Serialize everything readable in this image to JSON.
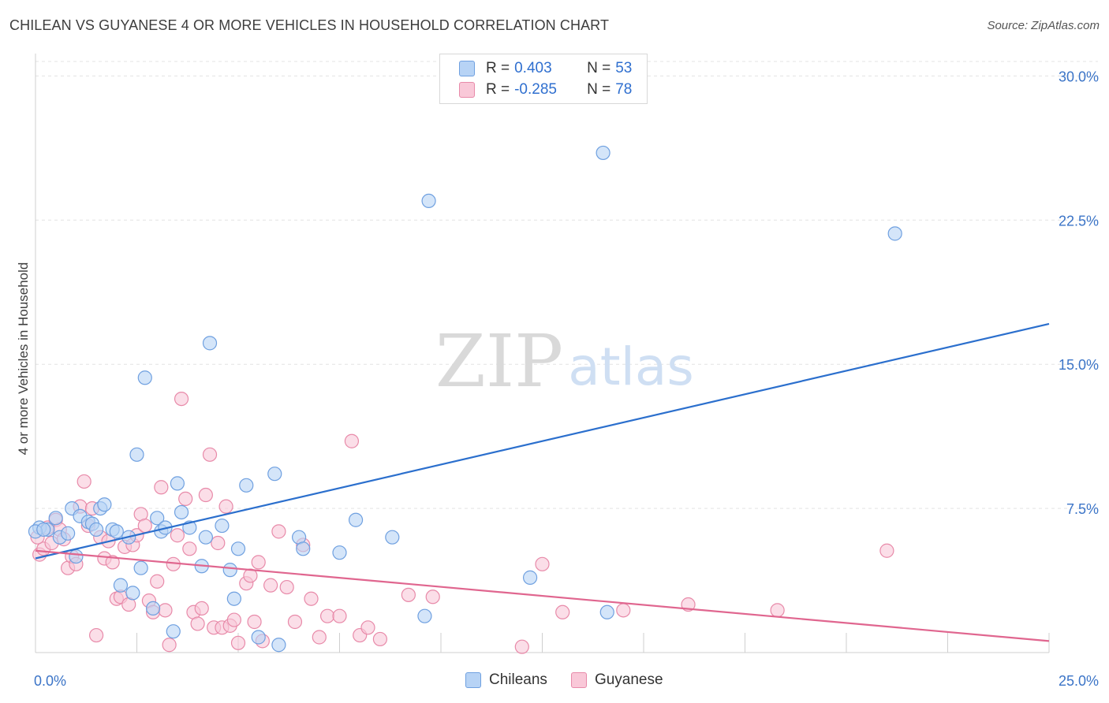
{
  "title": "CHILEAN VS GUYANESE 4 OR MORE VEHICLES IN HOUSEHOLD CORRELATION CHART",
  "source": "Source: ZipAtlas.com",
  "watermark": {
    "zip": "ZIP",
    "atlas": "atlas"
  },
  "legend_top": [
    {
      "r_label": "R =",
      "r_value": "0.403",
      "n_label": "N =",
      "n_value": "53"
    },
    {
      "r_label": "R =",
      "r_value": "-0.285",
      "n_label": "N =",
      "n_value": "78"
    }
  ],
  "colors": {
    "blue_fill": "#b7d3f5",
    "blue_stroke": "#6fa0e0",
    "blue_line": "#2b6fcd",
    "pink_fill": "#f9c8d8",
    "pink_stroke": "#e88aa9",
    "pink_line": "#e0668f",
    "tick_label": "#3b74c7",
    "grid": "#e3e3e3"
  },
  "chart_data": {
    "type": "scatter",
    "ylabel": "4 or more Vehicles in Household",
    "xlim": [
      0,
      25
    ],
    "ylim": [
      0,
      31
    ],
    "x_tick_labels": [
      "0.0%",
      "25.0%"
    ],
    "y_ticks": [
      7.5,
      15,
      22.5,
      30
    ],
    "y_tick_labels": [
      "7.5%",
      "15.0%",
      "22.5%",
      "30.0%"
    ],
    "grid": "horizontal dashed",
    "legend_placement": "bottom-center",
    "series": [
      {
        "name": "Chileans",
        "trend": [
          [
            0,
            4.9
          ],
          [
            25,
            17.1
          ]
        ],
        "points": [
          [
            0.1,
            6.5
          ],
          [
            0.3,
            6.4
          ],
          [
            0.5,
            7.0
          ],
          [
            0.6,
            6.0
          ],
          [
            0.8,
            6.2
          ],
          [
            0.9,
            7.5
          ],
          [
            1.0,
            5.0
          ],
          [
            1.1,
            7.1
          ],
          [
            1.3,
            6.8
          ],
          [
            1.4,
            6.7
          ],
          [
            1.5,
            6.4
          ],
          [
            1.6,
            7.5
          ],
          [
            1.7,
            7.7
          ],
          [
            1.9,
            6.4
          ],
          [
            2.0,
            6.3
          ],
          [
            2.1,
            3.5
          ],
          [
            2.3,
            6.0
          ],
          [
            2.4,
            3.1
          ],
          [
            2.5,
            10.3
          ],
          [
            2.6,
            4.4
          ],
          [
            2.7,
            14.3
          ],
          [
            2.9,
            2.3
          ],
          [
            3.0,
            7.0
          ],
          [
            3.1,
            6.3
          ],
          [
            3.2,
            6.5
          ],
          [
            3.4,
            1.1
          ],
          [
            3.5,
            8.8
          ],
          [
            3.6,
            7.3
          ],
          [
            3.8,
            6.5
          ],
          [
            4.1,
            4.5
          ],
          [
            4.2,
            6.0
          ],
          [
            4.3,
            16.1
          ],
          [
            4.6,
            6.6
          ],
          [
            4.8,
            4.3
          ],
          [
            4.9,
            2.8
          ],
          [
            5.0,
            5.4
          ],
          [
            5.2,
            8.7
          ],
          [
            5.5,
            0.8
          ],
          [
            5.9,
            9.3
          ],
          [
            6.0,
            0.4
          ],
          [
            6.5,
            6.0
          ],
          [
            6.6,
            5.4
          ],
          [
            7.5,
            5.2
          ],
          [
            7.9,
            6.9
          ],
          [
            8.8,
            6.0
          ],
          [
            9.6,
            1.9
          ],
          [
            9.7,
            23.5
          ],
          [
            12.2,
            3.9
          ],
          [
            14.0,
            26.0
          ],
          [
            14.1,
            2.1
          ],
          [
            21.2,
            21.8
          ],
          [
            0.0,
            6.3
          ],
          [
            0.2,
            6.4
          ]
        ]
      },
      {
        "name": "Guyanese",
        "trend": [
          [
            0,
            5.3
          ],
          [
            25,
            0.6
          ]
        ],
        "points": [
          [
            0.1,
            5.1
          ],
          [
            0.2,
            5.4
          ],
          [
            0.3,
            6.5
          ],
          [
            0.4,
            5.7
          ],
          [
            0.5,
            6.9
          ],
          [
            0.6,
            6.4
          ],
          [
            0.7,
            5.9
          ],
          [
            0.8,
            4.4
          ],
          [
            0.9,
            5.0
          ],
          [
            1.0,
            4.6
          ],
          [
            1.1,
            7.6
          ],
          [
            1.2,
            8.9
          ],
          [
            1.3,
            6.6
          ],
          [
            1.4,
            7.5
          ],
          [
            1.5,
            0.9
          ],
          [
            1.6,
            6.0
          ],
          [
            1.7,
            4.9
          ],
          [
            1.8,
            5.8
          ],
          [
            1.9,
            4.7
          ],
          [
            2.0,
            2.8
          ],
          [
            2.1,
            2.9
          ],
          [
            2.2,
            5.5
          ],
          [
            2.3,
            2.5
          ],
          [
            2.4,
            5.6
          ],
          [
            2.5,
            6.1
          ],
          [
            2.6,
            7.2
          ],
          [
            2.7,
            6.6
          ],
          [
            2.8,
            2.7
          ],
          [
            2.9,
            2.1
          ],
          [
            3.0,
            3.7
          ],
          [
            3.1,
            8.6
          ],
          [
            3.2,
            2.2
          ],
          [
            3.3,
            0.4
          ],
          [
            3.4,
            4.6
          ],
          [
            3.5,
            6.1
          ],
          [
            3.6,
            13.2
          ],
          [
            3.7,
            8.0
          ],
          [
            3.8,
            5.4
          ],
          [
            3.9,
            2.1
          ],
          [
            4.0,
            1.5
          ],
          [
            4.1,
            2.3
          ],
          [
            4.2,
            8.2
          ],
          [
            4.3,
            10.3
          ],
          [
            4.4,
            1.3
          ],
          [
            4.5,
            5.7
          ],
          [
            4.6,
            1.3
          ],
          [
            4.7,
            7.6
          ],
          [
            4.8,
            1.4
          ],
          [
            4.9,
            1.7
          ],
          [
            5.0,
            0.5
          ],
          [
            5.2,
            3.6
          ],
          [
            5.3,
            4.0
          ],
          [
            5.4,
            1.6
          ],
          [
            5.5,
            4.7
          ],
          [
            5.6,
            0.6
          ],
          [
            5.8,
            3.5
          ],
          [
            6.0,
            6.3
          ],
          [
            6.2,
            3.4
          ],
          [
            6.4,
            1.6
          ],
          [
            6.6,
            5.6
          ],
          [
            6.8,
            2.8
          ],
          [
            7.0,
            0.8
          ],
          [
            7.2,
            1.9
          ],
          [
            7.5,
            1.9
          ],
          [
            7.8,
            11.0
          ],
          [
            8.0,
            0.9
          ],
          [
            8.2,
            1.3
          ],
          [
            8.5,
            0.7
          ],
          [
            9.2,
            3.0
          ],
          [
            9.8,
            2.9
          ],
          [
            12.0,
            0.3
          ],
          [
            12.5,
            4.6
          ],
          [
            13.0,
            2.1
          ],
          [
            14.5,
            2.2
          ],
          [
            16.1,
            2.5
          ],
          [
            18.3,
            2.2
          ],
          [
            21.0,
            5.3
          ],
          [
            0.05,
            6.0
          ]
        ]
      }
    ]
  }
}
